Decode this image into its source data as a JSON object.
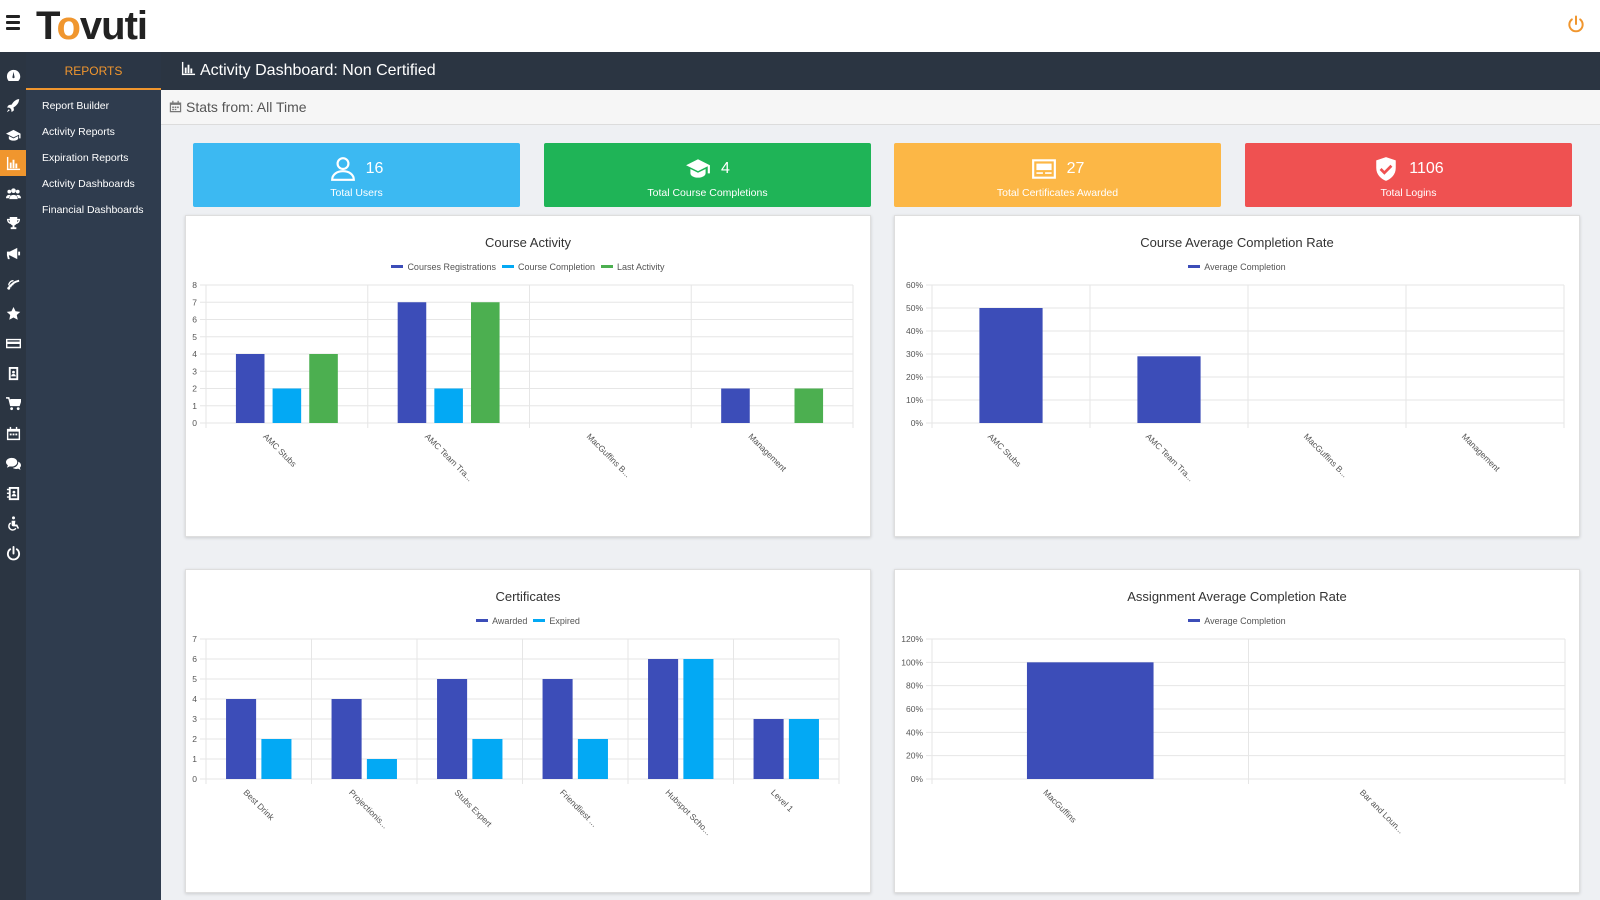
{
  "app": {
    "logo_prefix": "T",
    "logo_o": "o",
    "logo_suffix": "vuti",
    "menu_icon": "hamburger-icon",
    "power_icon": "power-icon",
    "accent_color": "#f0962e"
  },
  "rail": {
    "icons": [
      "dashboard-icon",
      "rocket-icon",
      "graduation-cap-icon",
      "bar-chart-icon",
      "users-icon",
      "trophy-icon",
      "megaphone-icon",
      "satellite-icon",
      "star-icon",
      "credit-card-icon",
      "id-badge-icon",
      "cart-icon",
      "calendar-icon",
      "chat-icon",
      "address-book-icon",
      "accessibility-icon",
      "power-icon"
    ],
    "active_index": 3
  },
  "submenu": {
    "title": "REPORTS",
    "items": [
      "Report Builder",
      "Activity Reports",
      "Expiration Reports",
      "Activity Dashboards",
      "Financial Dashboards"
    ]
  },
  "page": {
    "title": "Activity Dashboard: Non Certified",
    "stats_label": "Stats from: All Time"
  },
  "cards": {
    "users": {
      "value": "16",
      "label": "Total Users",
      "icon": "user-icon",
      "color": "#3cb9f2"
    },
    "course": {
      "value": "4",
      "label": "Total Course Completions",
      "icon": "graduation-cap-icon",
      "color": "#1fb457"
    },
    "cert": {
      "value": "27",
      "label": "Total Certificates Awarded",
      "icon": "certificate-icon",
      "color": "#fcb746"
    },
    "logins": {
      "value": "1106",
      "label": "Total Logins",
      "icon": "shield-check-icon",
      "color": "#ef5151"
    }
  },
  "chart_data": [
    {
      "id": "course-activity",
      "type": "bar",
      "title": "Course Activity",
      "categories": [
        "AMC Stubs",
        "AMC Team Tra...",
        "MacGuffins B...",
        "Management"
      ],
      "series": [
        {
          "name": "Courses Registrations",
          "color": "#3c4db8",
          "values": [
            4,
            7,
            0,
            2
          ]
        },
        {
          "name": "Course Completion",
          "color": "#03a9f4",
          "values": [
            2,
            2,
            0,
            0
          ]
        },
        {
          "name": "Last Activity",
          "color": "#4caf50",
          "values": [
            4,
            7,
            0,
            2
          ]
        }
      ],
      "ylim": [
        0,
        8
      ],
      "yticks": [
        "0",
        "1",
        "2",
        "3",
        "4",
        "5",
        "6",
        "7",
        "8"
      ],
      "grid": true,
      "legend": "top"
    },
    {
      "id": "course-avg-completion",
      "type": "bar",
      "title": "Course Average Completion Rate",
      "categories": [
        "AMC Stubs",
        "AMC Team Tra...",
        "MacGuffins B...",
        "Management"
      ],
      "series": [
        {
          "name": "Average Completion",
          "color": "#3c4db8",
          "values": [
            50,
            29,
            0,
            0
          ]
        }
      ],
      "ylim": [
        0,
        60
      ],
      "yticks": [
        "0%",
        "10%",
        "20%",
        "30%",
        "40%",
        "50%",
        "60%"
      ],
      "grid": true,
      "legend": "top"
    },
    {
      "id": "certificates",
      "type": "bar",
      "title": "Certificates",
      "categories": [
        "Best Drink",
        "Projectionis...",
        "Stubs Expert",
        "Friendliest ...",
        "Hubspot Scho...",
        "Level 1"
      ],
      "series": [
        {
          "name": "Awarded",
          "color": "#3c4db8",
          "values": [
            4,
            4,
            5,
            5,
            6,
            3
          ]
        },
        {
          "name": "Expired",
          "color": "#03a9f4",
          "values": [
            2,
            1,
            2,
            2,
            6,
            3
          ]
        }
      ],
      "ylim": [
        0,
        7
      ],
      "yticks": [
        "0",
        "1",
        "2",
        "3",
        "4",
        "5",
        "6",
        "7"
      ],
      "grid": true,
      "legend": "top"
    },
    {
      "id": "assignment-avg-completion",
      "type": "bar",
      "title": "Assignment Average Completion Rate",
      "categories": [
        "MacGuffins",
        "Bar and Loun..."
      ],
      "series": [
        {
          "name": "Average Completion",
          "color": "#3c4db8",
          "values": [
            100,
            0
          ]
        }
      ],
      "ylim": [
        0,
        120
      ],
      "yticks": [
        "0%",
        "20%",
        "40%",
        "60%",
        "80%",
        "100%",
        "120%"
      ],
      "grid": true,
      "legend": "top"
    }
  ]
}
